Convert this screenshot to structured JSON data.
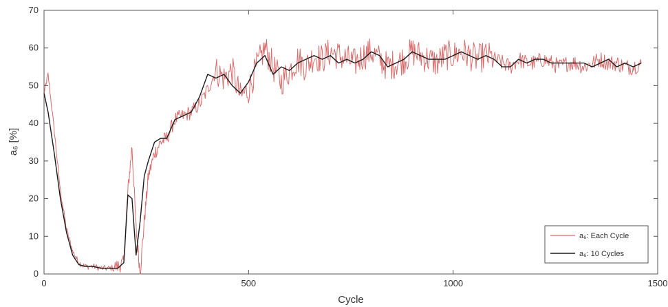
{
  "chart_data": {
    "type": "line",
    "xlabel": "Cycle",
    "ylabel": "a₆ [%]",
    "xlim": [
      0,
      1500
    ],
    "ylim": [
      0,
      70
    ],
    "xticks": [
      "0",
      "500",
      "1000",
      "1500"
    ],
    "yticks": [
      "0",
      "10",
      "20",
      "30",
      "40",
      "50",
      "60",
      "70"
    ],
    "grid": false,
    "legend_position": "bottom-right",
    "series": [
      {
        "name": "a₆: Each Cycle",
        "color": "#d96b6b",
        "noisy": true,
        "x": [
          0,
          10,
          25,
          40,
          55,
          70,
          85,
          100,
          120,
          140,
          160,
          180,
          195,
          205,
          215,
          225,
          235,
          245,
          255,
          270,
          285,
          300,
          320,
          340,
          360,
          380,
          400,
          420,
          440,
          460,
          480,
          500,
          520,
          540,
          560,
          580,
          600,
          620,
          640,
          660,
          680,
          700,
          720,
          740,
          760,
          780,
          800,
          820,
          840,
          860,
          880,
          900,
          920,
          940,
          960,
          980,
          1000,
          1020,
          1040,
          1060,
          1080,
          1100,
          1120,
          1140,
          1160,
          1180,
          1200,
          1220,
          1240,
          1260,
          1280,
          1300,
          1320,
          1340,
          1360,
          1380,
          1400,
          1420,
          1440,
          1460
        ],
        "y": [
          48,
          53,
          38,
          22,
          12,
          6,
          3,
          2,
          2,
          1.5,
          1.5,
          2,
          3,
          22,
          34,
          12,
          0,
          14,
          26,
          32,
          35,
          36,
          41,
          42,
          43,
          45,
          49,
          54,
          52,
          54,
          47,
          49,
          55,
          60,
          55,
          51,
          54,
          57,
          55,
          58,
          57,
          59,
          58,
          57,
          56,
          58,
          59,
          57,
          55,
          56,
          57,
          59,
          58,
          57,
          56,
          58,
          58,
          59,
          58,
          57,
          58,
          57,
          56,
          55,
          57,
          56,
          56,
          57,
          56,
          55,
          56,
          56,
          55,
          56,
          57,
          56,
          56,
          55,
          55,
          56
        ]
      },
      {
        "name": "a₆: 10 Cycles",
        "color": "#1a1a1a",
        "noisy": false,
        "x": [
          0,
          10,
          25,
          40,
          55,
          70,
          85,
          100,
          120,
          140,
          160,
          180,
          195,
          205,
          215,
          225,
          235,
          245,
          255,
          270,
          285,
          300,
          320,
          340,
          360,
          380,
          400,
          420,
          440,
          460,
          480,
          500,
          520,
          540,
          560,
          580,
          600,
          620,
          640,
          660,
          680,
          700,
          720,
          740,
          760,
          780,
          800,
          820,
          840,
          860,
          880,
          900,
          920,
          940,
          960,
          980,
          1000,
          1020,
          1040,
          1060,
          1080,
          1100,
          1120,
          1140,
          1160,
          1180,
          1200,
          1220,
          1240,
          1260,
          1280,
          1300,
          1320,
          1340,
          1360,
          1380,
          1400,
          1420,
          1440,
          1460
        ],
        "y": [
          48,
          43,
          32,
          20,
          11,
          5,
          2.5,
          2,
          2,
          1.5,
          1.5,
          1.5,
          3,
          21,
          20,
          5,
          14,
          26,
          30,
          35,
          36,
          36,
          41,
          42,
          43,
          47,
          53,
          52,
          53,
          50,
          48,
          51,
          56,
          58,
          53,
          55,
          54,
          56,
          57,
          58,
          57,
          58,
          56,
          57,
          56,
          57,
          59,
          58,
          55,
          56,
          57,
          59,
          58,
          57,
          57,
          57,
          58,
          59,
          58,
          57,
          58,
          57,
          55,
          55,
          57,
          56,
          57,
          57,
          56,
          56,
          56,
          56,
          56,
          55,
          56,
          57,
          55,
          56,
          55,
          56
        ]
      }
    ]
  }
}
